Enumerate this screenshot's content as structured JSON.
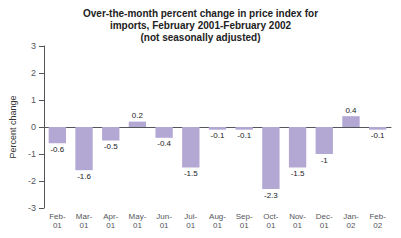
{
  "chart_data": {
    "type": "bar",
    "title": "Over-the-month percent change in price index for\nimports, February 2001-February 2002\n(not seasonally adjusted)",
    "ylabel": "Percent change",
    "categories": [
      "Feb-\n01",
      "Mar-\n01",
      "Apr-\n01",
      "May-\n01",
      "Jun-\n01",
      "Jul-\n01",
      "Aug-\n01",
      "Sep-\n01",
      "Oct-\n01",
      "Nov-\n01",
      "Dec-\n01",
      "Jan-\n02",
      "Feb-\n02"
    ],
    "values": [
      -0.6,
      -1.6,
      -0.5,
      0.2,
      -0.4,
      -1.5,
      -0.1,
      -0.1,
      -2.3,
      -1.5,
      -1.0,
      0.4,
      -0.1
    ],
    "color": "#b3a8d4",
    "ylim": [
      -3,
      3
    ],
    "yticks": [
      -3,
      -2,
      -1,
      0,
      1,
      2,
      3
    ],
    "grid": false,
    "data_labels": true
  }
}
